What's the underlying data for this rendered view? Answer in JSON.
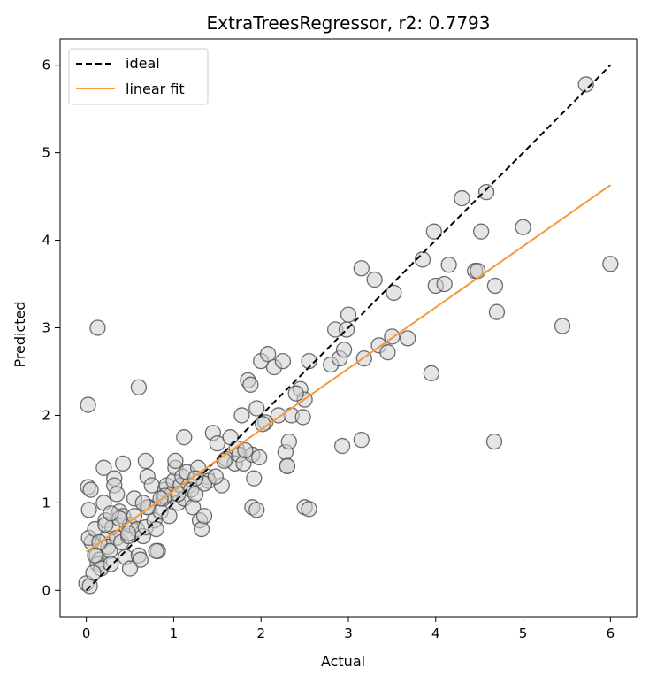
{
  "chart_data": {
    "type": "scatter",
    "title": "ExtraTreesRegressor, r2: 0.7793",
    "xlabel": "Actual",
    "ylabel": "Predicted",
    "xlim": [
      -0.3,
      6.3
    ],
    "ylim": [
      -0.3,
      6.3
    ],
    "xticks": [
      0,
      1,
      2,
      3,
      4,
      5,
      6
    ],
    "yticks": [
      0,
      1,
      2,
      3,
      4,
      5,
      6
    ],
    "legend_position": "top-left",
    "ideal_line": {
      "name": "ideal",
      "x": [
        0,
        6
      ],
      "y": [
        0,
        6
      ],
      "color": "#000000",
      "style": "dashed"
    },
    "fit_line": {
      "name": "linear fit",
      "x": [
        0,
        6
      ],
      "y": [
        0.44,
        4.63
      ],
      "color": "#f59a3c",
      "style": "solid"
    },
    "points": {
      "fill": "#cfcfcf",
      "stroke": "#555555",
      "x": [
        0.0,
        0.04,
        0.03,
        0.02,
        0.05,
        0.06,
        0.03,
        0.1,
        0.12,
        0.15,
        0.13,
        0.17,
        0.2,
        0.22,
        0.24,
        0.25,
        0.27,
        0.28,
        0.3,
        0.32,
        0.35,
        0.38,
        0.4,
        0.42,
        0.45,
        0.48,
        0.5,
        0.55,
        0.58,
        0.6,
        0.62,
        0.65,
        0.68,
        0.7,
        0.72,
        0.75,
        0.78,
        0.8,
        0.82,
        0.85,
        0.88,
        0.9,
        0.92,
        0.95,
        0.98,
        1.0,
        1.02,
        1.05,
        1.08,
        1.1,
        1.12,
        1.15,
        1.18,
        1.2,
        1.22,
        1.25,
        1.28,
        1.3,
        1.32,
        1.35,
        1.38,
        1.4,
        1.45,
        1.5,
        1.55,
        1.6,
        1.65,
        1.7,
        1.72,
        1.75,
        1.78,
        1.8,
        1.85,
        1.88,
        1.9,
        1.92,
        1.95,
        1.98,
        2.0,
        2.05,
        2.08,
        2.15,
        2.25,
        2.28,
        2.3,
        2.32,
        2.35,
        2.45,
        2.48,
        2.5,
        2.55,
        2.8,
        2.85,
        2.9,
        2.95,
        2.98,
        3.0,
        3.15,
        3.18,
        3.3,
        3.35,
        3.45,
        3.5,
        3.52,
        3.68,
        3.85,
        3.95,
        3.98,
        4.0,
        4.1,
        4.15,
        4.3,
        4.45,
        4.48,
        4.52,
        4.58,
        4.68,
        4.7,
        4.67,
        5.0,
        5.45,
        5.72,
        6.0,
        0.13,
        0.02,
        0.6,
        0.2,
        0.32,
        0.42,
        0.68,
        1.12,
        0.5,
        0.8,
        1.02,
        1.9,
        1.95,
        2.3,
        2.5,
        2.55,
        3.15,
        2.93,
        1.35,
        0.9,
        0.7,
        0.55,
        0.38,
        0.22,
        0.15,
        0.1,
        0.08,
        0.28,
        0.35,
        0.48,
        0.65,
        0.85,
        1.05,
        1.25,
        1.48,
        1.58,
        1.82,
        2.02,
        2.2,
        2.4
      ],
      "y": [
        0.08,
        0.05,
        0.92,
        1.18,
        1.15,
        0.55,
        0.6,
        0.7,
        0.4,
        0.35,
        0.3,
        0.25,
        1.0,
        0.8,
        0.6,
        0.5,
        0.45,
        0.3,
        0.72,
        1.28,
        0.6,
        0.9,
        0.55,
        0.85,
        0.38,
        0.62,
        0.75,
        0.85,
        0.7,
        0.4,
        0.35,
        0.62,
        0.72,
        1.3,
        0.95,
        1.2,
        0.8,
        0.7,
        0.45,
        0.9,
        1.05,
        1.15,
        1.2,
        0.85,
        1.1,
        1.25,
        1.4,
        1.0,
        1.2,
        1.3,
        1.05,
        1.35,
        1.2,
        1.15,
        0.95,
        1.1,
        1.4,
        0.8,
        0.7,
        0.85,
        1.3,
        1.25,
        1.8,
        1.68,
        1.2,
        1.5,
        1.75,
        1.45,
        1.62,
        1.55,
        2.0,
        1.45,
        2.4,
        2.35,
        1.55,
        1.28,
        2.08,
        1.52,
        2.62,
        1.92,
        2.7,
        2.55,
        2.62,
        1.58,
        1.42,
        1.7,
        2.0,
        2.3,
        1.98,
        2.18,
        2.62,
        2.58,
        2.98,
        2.65,
        2.75,
        2.98,
        3.15,
        3.68,
        2.65,
        3.55,
        2.8,
        2.72,
        2.9,
        3.4,
        2.88,
        3.78,
        2.48,
        4.1,
        3.48,
        3.5,
        3.72,
        4.48,
        3.65,
        3.65,
        4.1,
        4.55,
        3.48,
        3.18,
        1.7,
        4.15,
        3.02,
        5.78,
        3.73,
        3.0,
        2.12,
        2.32,
        1.4,
        1.2,
        1.45,
        1.48,
        1.75,
        0.25,
        0.45,
        1.48,
        0.95,
        0.92,
        1.42,
        0.95,
        0.93,
        1.72,
        1.65,
        1.22,
        1.08,
        0.95,
        1.05,
        0.82,
        0.75,
        0.55,
        0.4,
        0.2,
        0.88,
        1.1,
        0.65,
        1.0,
        1.05,
        1.1,
        1.28,
        1.3,
        1.48,
        1.6,
        1.9,
        2.0,
        2.25
      ]
    }
  }
}
